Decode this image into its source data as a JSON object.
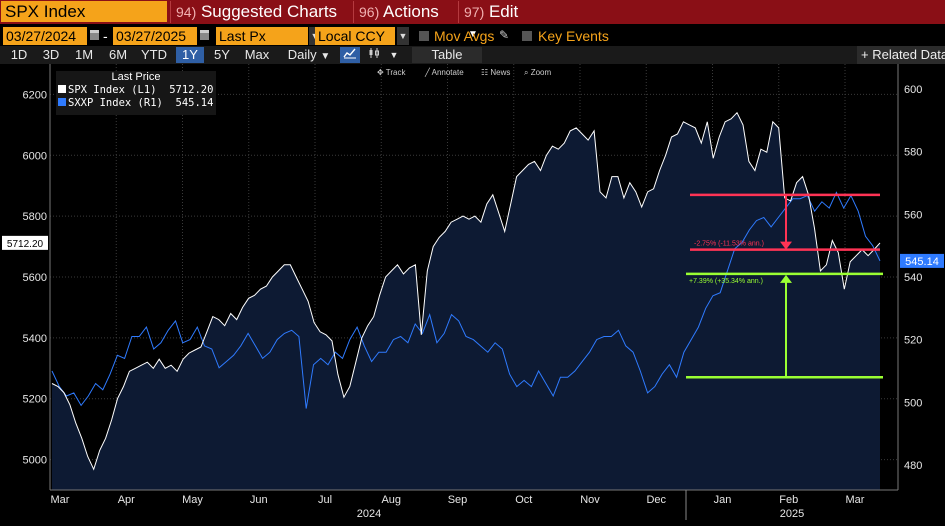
{
  "topbar": {
    "ticker": "SPX Index",
    "menus": [
      {
        "num": "94)",
        "label": "Suggested Charts"
      },
      {
        "num": "96)",
        "label": "Actions"
      },
      {
        "num": "97)",
        "label": "Edit"
      }
    ]
  },
  "controls": {
    "start_date": "03/27/2024",
    "date_sep": "-",
    "end_date": "03/27/2025",
    "price_field": "Last Px",
    "currency": "Local CCY",
    "mov_avgs": "Mov Avgs",
    "key_events": "Key Events"
  },
  "ranges": {
    "items": [
      "1D",
      "3D",
      "1M",
      "6M",
      "YTD",
      "1Y",
      "5Y",
      "Max"
    ],
    "active": "1Y",
    "freq": "Daily",
    "table": "Table",
    "related": "+ Related Data"
  },
  "tools": {
    "track": "Track",
    "annotate": "Annotate",
    "news": "News",
    "zoom": "Zoom"
  },
  "legend": {
    "title": "Last Price",
    "rows": [
      {
        "name": "SPX Index",
        "axis": "(L1)",
        "value": "5712.20",
        "color": "#ffffff"
      },
      {
        "name": "SXXP Index",
        "axis": "(R1)",
        "value": "545.14",
        "color": "#2f7bff"
      }
    ]
  },
  "chart_data": {
    "type": "line",
    "x_labels": [
      "Mar",
      "Apr",
      "May",
      "Jun",
      "Jul",
      "Aug",
      "Sep",
      "Oct",
      "Nov",
      "Dec",
      "Jan",
      "Feb",
      "Mar"
    ],
    "year_labels": [
      "2024",
      "2025"
    ],
    "left_axis": {
      "ticks": [
        5000,
        5200,
        5400,
        5600,
        5800,
        6000,
        6200
      ],
      "range": [
        4900,
        6300
      ],
      "last_value_label": "5712.20"
    },
    "right_axis": {
      "ticks": [
        480,
        500,
        520,
        540,
        560,
        580,
        600
      ],
      "range": [
        472,
        608
      ],
      "last_value_label": "545.14"
    },
    "grid": true,
    "series": [
      {
        "name": "SPX Index",
        "axis": "left",
        "color": "#ffffff",
        "values": [
          5250,
          5240,
          5220,
          5180,
          5120,
          5070,
          5010,
          4968,
          5030,
          5070,
          5130,
          5200,
          5240,
          5290,
          5300,
          5310,
          5320,
          5300,
          5330,
          5300,
          5310,
          5290,
          5330,
          5350,
          5360,
          5370,
          5420,
          5470,
          5460,
          5440,
          5480,
          5460,
          5500,
          5530,
          5540,
          5560,
          5570,
          5600,
          5620,
          5640,
          5640,
          5600,
          5560,
          5520,
          5450,
          5420,
          5410,
          5390,
          5280,
          5205,
          5240,
          5320,
          5400,
          5440,
          5470,
          5540,
          5600,
          5620,
          5640,
          5610,
          5630,
          5640,
          5410,
          5620,
          5700,
          5730,
          5750,
          5780,
          5790,
          5800,
          5790,
          5800,
          5780,
          5840,
          5870,
          5810,
          5750,
          5840,
          5930,
          5950,
          5970,
          5980,
          5950,
          6000,
          6030,
          6020,
          6040,
          6080,
          6090,
          6070,
          6050,
          6080,
          5880,
          5860,
          5930,
          5930,
          5860,
          5910,
          5880,
          5830,
          5880,
          5890,
          5950,
          6000,
          6060,
          6070,
          6110,
          6100,
          6090,
          6040,
          6110,
          5990,
          6060,
          6110,
          6120,
          6140,
          6100,
          5980,
          5950,
          6020,
          6010,
          6110,
          6090,
          5860,
          5850,
          5910,
          5930,
          5870,
          5760,
          5620,
          5640,
          5720,
          5680,
          5560,
          5650,
          5670,
          5690,
          5670,
          5690,
          5712.2
        ]
      },
      {
        "name": "SXXP Index",
        "axis": "right",
        "color": "#2f7bff",
        "values": [
          510,
          505,
          502,
          503,
          499,
          502,
          506,
          504,
          509,
          515,
          514,
          521,
          521,
          524,
          517,
          519,
          523,
          526,
          519,
          520,
          524,
          518,
          517,
          511,
          513,
          515,
          518,
          522,
          518,
          514,
          516,
          520,
          522,
          523,
          521,
          498,
          512,
          514,
          512,
          516,
          514,
          520,
          524,
          518,
          513,
          516,
          516,
          520,
          521,
          519,
          525,
          522,
          528,
          519,
          522,
          528,
          526,
          521,
          520,
          518,
          516,
          519,
          517,
          509,
          505,
          507,
          505,
          510,
          506,
          502,
          508,
          508,
          510,
          513,
          516,
          520,
          521,
          521,
          523,
          518,
          516,
          510,
          503,
          505,
          509,
          512,
          508,
          516,
          520,
          524,
          530,
          534,
          535,
          542,
          549,
          551,
          555,
          558,
          559,
          556,
          559,
          562,
          565,
          565,
          566,
          561,
          564,
          562,
          567,
          562,
          566,
          561,
          553,
          550,
          545.14
        ]
      }
    ],
    "annotations": [
      {
        "label": "-2.75% (-11.53% ann.)",
        "color": "#ff3355"
      },
      {
        "label": "+7.39% (+35.34% ann.)",
        "color": "#9aff33"
      }
    ]
  }
}
